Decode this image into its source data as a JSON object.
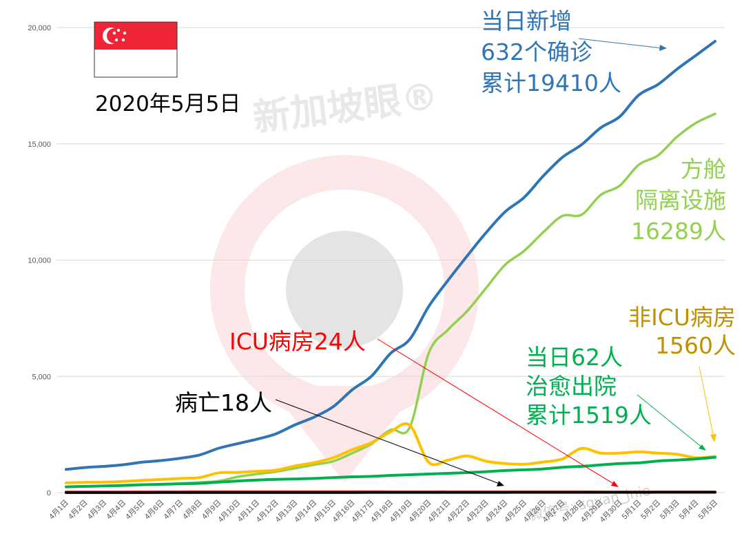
{
  "chart_data": {
    "type": "line",
    "title": "",
    "date_text": "2020年5月5日",
    "xlabel": "",
    "ylabel": "",
    "ylim": [
      0,
      20000
    ],
    "yticks": [
      "0",
      "5,000",
      "10,000",
      "15,000",
      "20,000"
    ],
    "ytick_values": [
      0,
      5000,
      10000,
      15000,
      20000
    ],
    "grid": true,
    "legend": "none",
    "categories": [
      "4月1日",
      "4月2日",
      "4月3日",
      "4月4日",
      "4月5日",
      "4月6日",
      "4月7日",
      "4月8日",
      "4月9日",
      "4月10日",
      "4月11日",
      "4月12日",
      "4月13日",
      "4月14日",
      "4月15日",
      "4月16日",
      "4月17日",
      "4月18日",
      "4月19日",
      "4月20日",
      "4月21日",
      "4月22日",
      "4月23日",
      "4月24日",
      "4月25日",
      "4月26日",
      "4月27日",
      "4月28日",
      "4月29日",
      "4月30日",
      "5月1日",
      "5月2日",
      "5月3日",
      "5月4日",
      "5月5日"
    ],
    "series": [
      {
        "color": "#2e75b6",
        "values": [
          1000,
          1080,
          1130,
          1200,
          1310,
          1380,
          1480,
          1620,
          1910,
          2110,
          2300,
          2530,
          2920,
          3250,
          3700,
          4430,
          5010,
          5990,
          6590,
          8010,
          9120,
          10170,
          11180,
          12080,
          12700,
          13620,
          14420,
          14960,
          15690,
          16170,
          17100,
          17550,
          18210,
          18810,
          19410
        ]
      },
      {
        "color": "#92d050",
        "values": [
          250,
          270,
          290,
          300,
          330,
          360,
          400,
          440,
          500,
          680,
          800,
          900,
          1050,
          1200,
          1350,
          1700,
          2100,
          2700,
          2800,
          6000,
          7000,
          7800,
          8800,
          9800,
          10400,
          11200,
          11900,
          11950,
          12800,
          13200,
          14100,
          14500,
          15300,
          15900,
          16289
        ]
      },
      {
        "color": "#ffc000",
        "values": [
          420,
          440,
          450,
          480,
          530,
          570,
          610,
          650,
          850,
          870,
          920,
          970,
          1150,
          1290,
          1500,
          1850,
          2150,
          2620,
          2900,
          1300,
          1400,
          1580,
          1350,
          1250,
          1220,
          1320,
          1450,
          1900,
          1700,
          1700,
          1750,
          1700,
          1650,
          1500,
          1560
        ]
      },
      {
        "color": "#00b050",
        "values": [
          250,
          270,
          290,
          310,
          340,
          360,
          380,
          400,
          450,
          500,
          540,
          570,
          590,
          610,
          650,
          680,
          700,
          740,
          770,
          800,
          830,
          860,
          900,
          950,
          980,
          1020,
          1090,
          1130,
          1190,
          1250,
          1280,
          1360,
          1400,
          1450,
          1519
        ]
      },
      {
        "color": "#ff0000",
        "values": [
          22,
          23,
          24,
          25,
          26,
          27,
          28,
          29,
          29,
          30,
          30,
          30,
          30,
          29,
          29,
          29,
          29,
          28,
          28,
          28,
          28,
          27,
          27,
          27,
          26,
          26,
          26,
          26,
          25,
          25,
          25,
          25,
          24,
          24,
          24
        ]
      },
      {
        "color": "#000000",
        "values": [
          3,
          3,
          3,
          4,
          4,
          5,
          5,
          6,
          6,
          6,
          7,
          8,
          9,
          10,
          10,
          10,
          11,
          11,
          11,
          11,
          11,
          12,
          12,
          12,
          14,
          14,
          15,
          15,
          15,
          16,
          16,
          17,
          17,
          18,
          18
        ]
      }
    ],
    "annotations": [
      {
        "lines": [
          "当日新增",
          "632个确诊",
          "累计19410人"
        ],
        "color": "#2e75b6"
      },
      {
        "lines": [
          "方舱",
          "隔离设施",
          "16289人"
        ],
        "color": "#92d050"
      },
      {
        "lines": [
          "非ICU病房",
          "1560人"
        ],
        "color": "#bf9000"
      },
      {
        "lines": [
          "当日62人",
          "治愈出院",
          "累计1519人"
        ],
        "color": "#00b050"
      },
      {
        "lines": [
          "ICU病房24人"
        ],
        "color": "#ff0000"
      },
      {
        "lines": [
          "病亡18人"
        ],
        "color": "#000000"
      }
    ]
  },
  "flag": {
    "name": "singapore-flag",
    "red": "#ee2536",
    "white": "#ffffff"
  },
  "watermark": {
    "logo_text": "新加坡眼®",
    "footer_text": "微信号: sgyan_jnie"
  }
}
